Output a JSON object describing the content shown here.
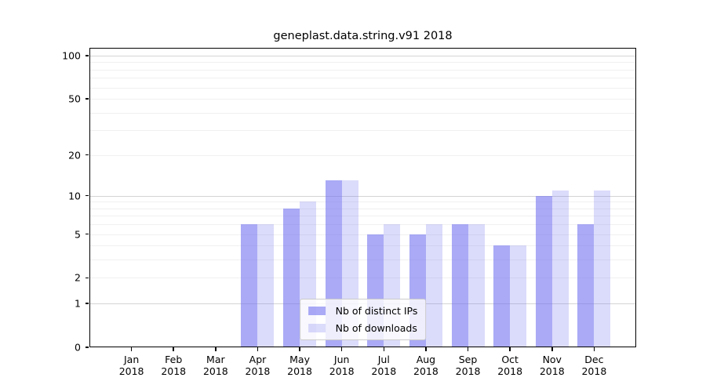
{
  "chart_data": {
    "type": "bar",
    "title": "geneplast.data.string.v91 2018",
    "categories": [
      "Jan",
      "Feb",
      "Mar",
      "Apr",
      "May",
      "Jun",
      "Jul",
      "Aug",
      "Sep",
      "Oct",
      "Nov",
      "Dec"
    ],
    "year": "2018",
    "series": [
      {
        "key": "distinct-ips",
        "name": "Nb of distinct IPs",
        "color": "rgba(114,114,240,0.6)",
        "values": [
          0,
          0,
          0,
          6,
          8,
          13,
          5,
          5,
          6,
          4,
          10,
          6
        ]
      },
      {
        "key": "downloads",
        "name": "Nb of downloads",
        "color": "rgba(114,114,240,0.26)",
        "values": [
          0,
          0,
          0,
          6,
          9,
          13,
          6,
          6,
          6,
          4,
          11,
          11
        ]
      }
    ],
    "y_axis": {
      "scale": "log10(1+x)",
      "ticks": [
        0,
        1,
        2,
        5,
        10,
        20,
        50,
        100
      ],
      "major_gridlines": [
        1,
        10,
        100
      ],
      "minor_gridlines": [
        2,
        3,
        4,
        5,
        6,
        7,
        8,
        9,
        20,
        30,
        40,
        50,
        60,
        70,
        80,
        90
      ],
      "ylim": [
        0,
        113
      ]
    },
    "legend": {
      "position": "lower center"
    }
  }
}
